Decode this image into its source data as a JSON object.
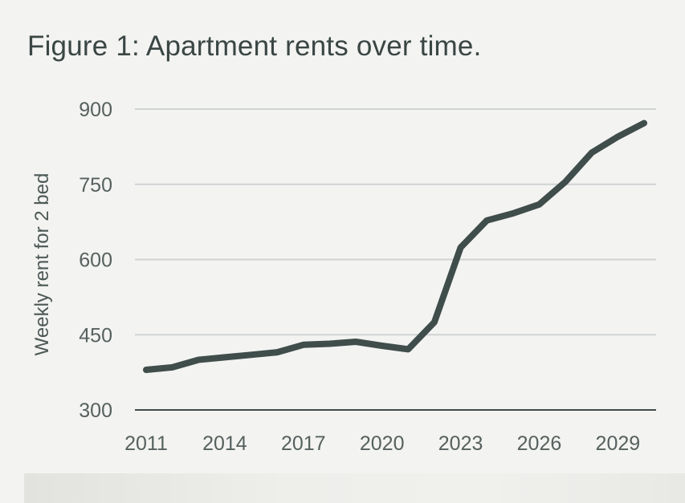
{
  "chart_data": {
    "type": "line",
    "title": "Figure 1:  Apartment rents over time.",
    "xlabel": "",
    "ylabel": "Weekly rent for 2 bed",
    "xlim": [
      2011,
      2030
    ],
    "ylim": [
      300,
      900
    ],
    "x_ticks": [
      2011,
      2014,
      2017,
      2020,
      2023,
      2026,
      2029
    ],
    "y_ticks": [
      300,
      450,
      600,
      750,
      900
    ],
    "grid": true,
    "legend": "none",
    "line_color": "#3f4d4b",
    "grid_color": "#cfd3d4",
    "series": [
      {
        "x": [
          2011,
          2012,
          2013,
          2014,
          2015,
          2016,
          2017,
          2018,
          2019,
          2020,
          2021,
          2022,
          2023,
          2024,
          2025,
          2026,
          2027,
          2028,
          2029,
          2030
        ],
        "values": [
          380,
          385,
          400,
          405,
          410,
          415,
          430,
          432,
          436,
          428,
          421,
          475,
          624,
          678,
          692,
          710,
          755,
          813,
          845,
          872
        ]
      }
    ]
  }
}
